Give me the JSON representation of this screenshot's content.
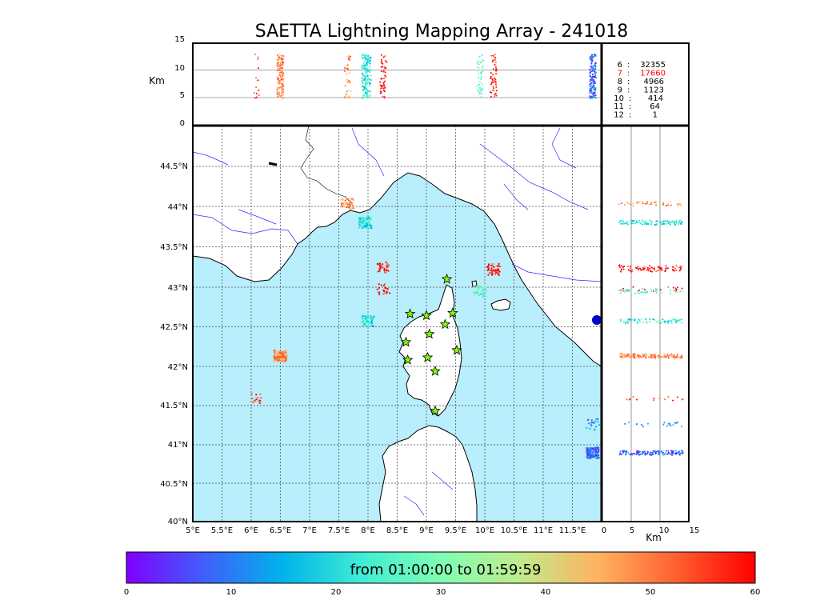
{
  "title": "SAETTA Lightning Mapping Array - 241018",
  "top_panel": {
    "ylabel": "Km",
    "yticks": [
      "15",
      "10",
      "5",
      "0"
    ]
  },
  "right_panel": {
    "xlabel": "Km",
    "xticks": [
      "0",
      "5",
      "10",
      "15"
    ]
  },
  "map": {
    "lon_ticks": [
      "5°E",
      "5.5°E",
      "6°E",
      "6.5°E",
      "7°E",
      "7.5°E",
      "8°E",
      "8.5°E",
      "9°E",
      "9.5°E",
      "10°E",
      "10.5°E",
      "11°E",
      "11.5°E"
    ],
    "lat_ticks": [
      "44.5°N",
      "44°N",
      "43.5°N",
      "43°N",
      "42.5°N",
      "42°N",
      "41.5°N",
      "41°N",
      "40.5°N",
      "40°N"
    ],
    "sea_color": "#b9eefc",
    "land_color": "#ffffff"
  },
  "stats": [
    {
      "k": "6",
      "sep": ":",
      "v": "32355",
      "color": "#000000"
    },
    {
      "k": "7",
      "sep": ":",
      "v": "17660",
      "color": "#ff0000"
    },
    {
      "k": "8",
      "sep": ":",
      "v": "4966",
      "color": "#000000"
    },
    {
      "k": "9",
      "sep": ":",
      "v": "1123",
      "color": "#000000"
    },
    {
      "k": "10",
      "sep": ":",
      "v": "414",
      "color": "#000000"
    },
    {
      "k": "11",
      "sep": ":",
      "v": "64",
      "color": "#000000"
    },
    {
      "k": "12",
      "sep": ":",
      "v": "1",
      "color": "#000000"
    }
  ],
  "colorbar": {
    "label": "from 01:00:00 to 01:59:59",
    "ticks": [
      "0",
      "10",
      "20",
      "30",
      "40",
      "50",
      "60"
    ],
    "range": [
      0,
      60
    ],
    "colors": [
      "#7f00ff",
      "#3f60fa",
      "#00b4eb",
      "#40ecd4",
      "#80feb3",
      "#c0eb8d",
      "#ffb360",
      "#ff5f30",
      "#ff0000"
    ]
  },
  "station_marks": [
    {
      "lon": 9.35,
      "lat": 43.0
    },
    {
      "lon": 8.72,
      "lat": 42.57
    },
    {
      "lon": 9.0,
      "lat": 42.55
    },
    {
      "lon": 9.45,
      "lat": 42.58
    },
    {
      "lon": 9.32,
      "lat": 42.44
    },
    {
      "lon": 9.05,
      "lat": 42.32
    },
    {
      "lon": 8.65,
      "lat": 42.22
    },
    {
      "lon": 9.52,
      "lat": 42.12
    },
    {
      "lon": 9.02,
      "lat": 42.03
    },
    {
      "lon": 8.68,
      "lat": 42.0
    },
    {
      "lon": 9.15,
      "lat": 41.86
    },
    {
      "lon": 9.15,
      "lat": 41.37
    }
  ],
  "lightning_clusters": [
    {
      "lon": 6.5,
      "lat": 42.05,
      "time": 50,
      "n": 130
    },
    {
      "lon": 6.1,
      "lat": 41.52,
      "time": 55,
      "n": 15
    },
    {
      "lon": 7.65,
      "lat": 43.93,
      "time": 48,
      "n": 40
    },
    {
      "lon": 7.95,
      "lat": 43.7,
      "time": 22,
      "n": 110
    },
    {
      "lon": 8.25,
      "lat": 43.15,
      "time": 58,
      "n": 30
    },
    {
      "lon": 8.27,
      "lat": 42.88,
      "time": 58,
      "n": 20
    },
    {
      "lon": 8.0,
      "lat": 42.48,
      "time": 22,
      "n": 70
    },
    {
      "lon": 9.92,
      "lat": 42.85,
      "time": 25,
      "n": 40
    },
    {
      "lon": 10.15,
      "lat": 43.12,
      "time": 58,
      "n": 50
    },
    {
      "lon": 11.85,
      "lat": 40.85,
      "time": 8,
      "n": 140
    },
    {
      "lon": 11.85,
      "lat": 41.2,
      "time": 12,
      "n": 20
    }
  ]
}
